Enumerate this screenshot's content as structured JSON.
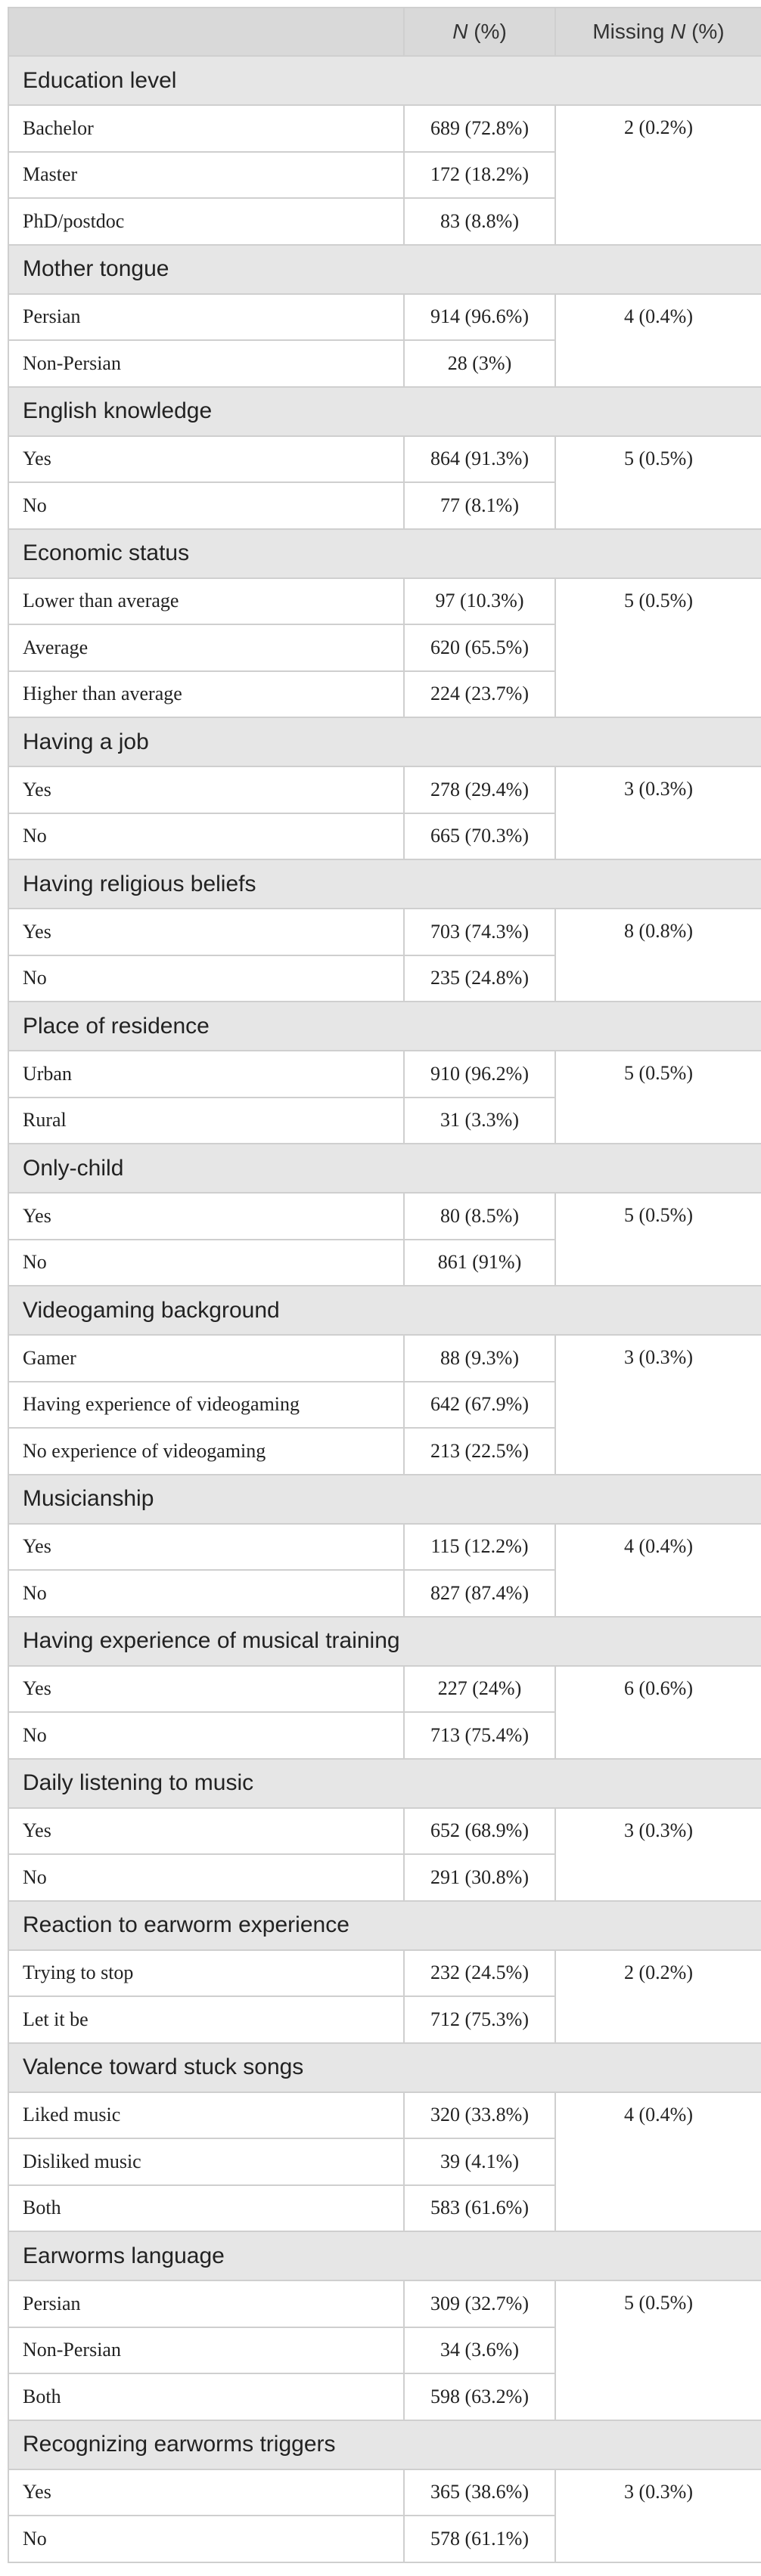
{
  "header": {
    "n_label": "N",
    "n_suffix": " (%)",
    "missing_prefix": "Missing ",
    "missing_n": "N",
    "missing_suffix": " (%)"
  },
  "groups": [
    {
      "title": "Education level",
      "missing": "2 (0.2%)",
      "rows": [
        {
          "label": "Bachelor",
          "value": "689 (72.8%)"
        },
        {
          "label": "Master",
          "value": "172 (18.2%)"
        },
        {
          "label": "PhD/postdoc",
          "value": "83 (8.8%)"
        }
      ]
    },
    {
      "title": "Mother tongue",
      "missing": "4 (0.4%)",
      "rows": [
        {
          "label": "Persian",
          "value": "914 (96.6%)"
        },
        {
          "label": "Non-Persian",
          "value": "28 (3%)"
        }
      ]
    },
    {
      "title": "English knowledge",
      "missing": "5 (0.5%)",
      "rows": [
        {
          "label": "Yes",
          "value": "864 (91.3%)"
        },
        {
          "label": "No",
          "value": "77 (8.1%)"
        }
      ]
    },
    {
      "title": "Economic status",
      "missing": "5 (0.5%)",
      "rows": [
        {
          "label": "Lower than average",
          "value": "97 (10.3%)"
        },
        {
          "label": "Average",
          "value": "620 (65.5%)"
        },
        {
          "label": "Higher than average",
          "value": "224 (23.7%)"
        }
      ]
    },
    {
      "title": "Having a job",
      "missing": "3 (0.3%)",
      "rows": [
        {
          "label": "Yes",
          "value": "278 (29.4%)"
        },
        {
          "label": "No",
          "value": "665 (70.3%)"
        }
      ]
    },
    {
      "title": "Having religious beliefs",
      "missing": "8 (0.8%)",
      "rows": [
        {
          "label": "Yes",
          "value": "703 (74.3%)"
        },
        {
          "label": "No",
          "value": "235 (24.8%)"
        }
      ]
    },
    {
      "title": "Place of residence",
      "missing": "5 (0.5%)",
      "rows": [
        {
          "label": "Urban",
          "value": "910 (96.2%)"
        },
        {
          "label": "Rural",
          "value": "31 (3.3%)"
        }
      ]
    },
    {
      "title": "Only-child",
      "missing": "5 (0.5%)",
      "rows": [
        {
          "label": "Yes",
          "value": "80 (8.5%)"
        },
        {
          "label": "No",
          "value": "861 (91%)"
        }
      ]
    },
    {
      "title": "Videogaming background",
      "missing": "3 (0.3%)",
      "rows": [
        {
          "label": "Gamer",
          "value": "88 (9.3%)"
        },
        {
          "label": "Having experience of videogaming",
          "value": "642 (67.9%)"
        },
        {
          "label": "No experience of videogaming",
          "value": "213 (22.5%)"
        }
      ]
    },
    {
      "title": "Musicianship",
      "missing": "4 (0.4%)",
      "rows": [
        {
          "label": "Yes",
          "value": "115 (12.2%)"
        },
        {
          "label": "No",
          "value": "827 (87.4%)"
        }
      ]
    },
    {
      "title": "Having experience of musical training",
      "missing": "6 (0.6%)",
      "rows": [
        {
          "label": "Yes",
          "value": "227 (24%)"
        },
        {
          "label": "No",
          "value": "713 (75.4%)"
        }
      ]
    },
    {
      "title": "Daily listening to music",
      "missing": "3 (0.3%)",
      "rows": [
        {
          "label": "Yes",
          "value": "652 (68.9%)"
        },
        {
          "label": "No",
          "value": "291 (30.8%)"
        }
      ]
    },
    {
      "title": "Reaction to earworm experience",
      "missing": "2 (0.2%)",
      "rows": [
        {
          "label": "Trying to stop",
          "value": "232 (24.5%)"
        },
        {
          "label": "Let it be",
          "value": "712 (75.3%)"
        }
      ]
    },
    {
      "title": "Valence toward stuck songs",
      "missing": "4 (0.4%)",
      "rows": [
        {
          "label": "Liked music",
          "value": "320 (33.8%)"
        },
        {
          "label": "Disliked music",
          "value": "39 (4.1%)"
        },
        {
          "label": "Both",
          "value": "583 (61.6%)"
        }
      ]
    },
    {
      "title": "Earworms language",
      "missing": "5 (0.5%)",
      "rows": [
        {
          "label": "Persian",
          "value": "309 (32.7%)"
        },
        {
          "label": "Non-Persian",
          "value": "34 (3.6%)"
        },
        {
          "label": "Both",
          "value": "598 (63.2%)"
        }
      ]
    },
    {
      "title": "Recognizing earworms triggers",
      "missing": "3 (0.3%)",
      "rows": [
        {
          "label": "Yes",
          "value": "365 (38.6%)"
        },
        {
          "label": "No",
          "value": "578 (61.1%)"
        }
      ]
    }
  ]
}
